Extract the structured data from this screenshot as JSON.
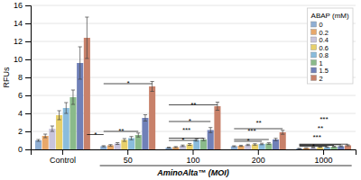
{
  "chart_data": {
    "type": "bar",
    "xlabel": "AminoAlta™ (MOI)",
    "ylabel": "RFUs",
    "legend_title": "ABAP (mM)",
    "categories": [
      "Control",
      "50",
      "100",
      "200",
      "1000"
    ],
    "series": [
      {
        "name": "0",
        "color": "#8fafd4",
        "values": [
          1.0,
          0.35,
          0.2,
          0.35,
          0.1
        ],
        "errors": [
          0.1,
          0.06,
          0.05,
          0.05,
          0.02
        ]
      },
      {
        "name": "0.2",
        "color": "#e8a86a",
        "values": [
          1.5,
          0.45,
          0.25,
          0.4,
          0.15
        ],
        "errors": [
          0.2,
          0.08,
          0.06,
          0.06,
          0.03
        ]
      },
      {
        "name": "0.4",
        "color": "#c8c4dc",
        "values": [
          2.3,
          0.65,
          0.4,
          0.5,
          0.2
        ],
        "errors": [
          0.3,
          0.1,
          0.08,
          0.07,
          0.03
        ]
      },
      {
        "name": "0.6",
        "color": "#e8d06a",
        "values": [
          3.8,
          1.05,
          0.55,
          0.55,
          0.25
        ],
        "errors": [
          0.5,
          0.15,
          0.1,
          0.08,
          0.03
        ]
      },
      {
        "name": "0.8",
        "color": "#8abcdc",
        "values": [
          4.6,
          1.25,
          1.05,
          0.6,
          0.25
        ],
        "errors": [
          0.6,
          0.18,
          0.12,
          0.08,
          0.04
        ]
      },
      {
        "name": "1",
        "color": "#8aba8a",
        "values": [
          5.8,
          1.6,
          1.1,
          0.65,
          0.3
        ],
        "errors": [
          0.8,
          0.22,
          0.13,
          0.09,
          0.04
        ]
      },
      {
        "name": "1.5",
        "color": "#7080b8",
        "values": [
          9.6,
          3.5,
          2.15,
          1.1,
          0.35
        ],
        "errors": [
          1.8,
          0.35,
          0.28,
          0.13,
          0.05
        ]
      },
      {
        "name": "2",
        "color": "#c8816a",
        "values": [
          12.4,
          7.0,
          4.8,
          1.9,
          0.45
        ],
        "errors": [
          2.3,
          0.55,
          0.45,
          0.22,
          0.06
        ]
      }
    ],
    "annotations": [
      {
        "text": "*",
        "y": 1.65,
        "from_category": "Control",
        "from_series": "2",
        "to_category": "50",
        "to_series": "0"
      },
      {
        "text": "**",
        "y": 2.0,
        "from_category": "50",
        "from_series": "0",
        "to_category": "50",
        "to_series": "1"
      },
      {
        "text": "*",
        "y": 7.3,
        "from_category": "50",
        "from_series": "0",
        "to_category": "50",
        "to_series": "2"
      },
      {
        "text": "**",
        "y": 4.95,
        "from_category": "100",
        "from_series": "0",
        "to_category": "100",
        "to_series": "2"
      },
      {
        "text": "*",
        "y": 3.1,
        "from_category": "100",
        "from_series": "0",
        "to_category": "100",
        "to_series": "1.5"
      },
      {
        "text": "***",
        "y": 1.25,
        "from_category": "100",
        "from_series": "0",
        "to_category": "100",
        "to_series": "1"
      },
      {
        "text": "*",
        "y": 1.0,
        "from_category": "100",
        "from_series": "0",
        "to_category": "100",
        "to_series": "0.8"
      },
      {
        "text": "**",
        "y": 2.3,
        "from_category": "200",
        "from_series": "0",
        "to_category": "200",
        "to_series": "2"
      },
      {
        "text": "***",
        "y": 1.1,
        "from_category": "200",
        "from_series": "0",
        "to_category": "200",
        "to_series": "1"
      },
      {
        "text": "*",
        "y": 0.9,
        "from_category": "200",
        "from_series": "0",
        "to_category": "200",
        "to_series": "0.8"
      },
      {
        "text": "***",
        "y": 0.58,
        "from_category": "1000",
        "from_series": "0",
        "to_category": "1000",
        "to_series": "2"
      },
      {
        "text": "***",
        "y": 0.45,
        "from_category": "1000",
        "from_series": "0",
        "to_category": "1000",
        "to_series": "1"
      },
      {
        "text": "*",
        "y": 0.35,
        "from_category": "1000",
        "from_series": "0",
        "to_category": "1000",
        "to_series": "0.8"
      },
      {
        "text": "**",
        "y": 0.52,
        "from_category": "1000",
        "from_series": "0",
        "to_category": "1000",
        "to_series": "1.5"
      }
    ],
    "ylim": [
      0,
      16
    ],
    "yticks": [
      0,
      2,
      4,
      6,
      8,
      10,
      12,
      14,
      16
    ],
    "grid": true,
    "legend": "upper right"
  }
}
